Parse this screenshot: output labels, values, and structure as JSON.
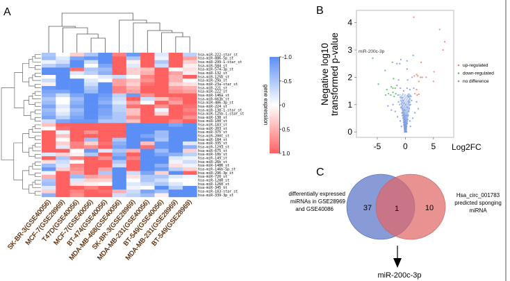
{
  "panels": {
    "a": "A",
    "b": "B",
    "c": "C"
  },
  "colors": {
    "low": "#5b8ff5",
    "mid": "#ffffff",
    "high": "#ff6161",
    "up": "#f08a70",
    "down": "#5fbf5f",
    "none": "#7f9fe0",
    "venn_left": "#5a74c8",
    "venn_right": "#e06868"
  },
  "chart_data": [
    {
      "type": "heatmap",
      "columns": [
        "SK-BR-3(GSE40056)",
        "MCF-7(GSE28969)",
        "T47D(GSE40056)",
        "MCF-7(GSE40056)",
        "BT-474(GSE40056)",
        "MDA-MB-468(GSE40056)",
        "SK-BR-3(GSE28969)",
        "MDA-MB-231(GSE40056)",
        "BT-549(GSE40056)",
        "MDA-MB-231(GSE28969)",
        "BT-549(GSE28969)"
      ],
      "rows": [
        "hsa-miR-222-star_st",
        "hsa-miR-886-5p_st",
        "hsa-miR-299-1-star_st",
        "hsa-miR-584_st",
        "hsa-miR-574-3p_st",
        "hsa-miR-132_st",
        "hsa-miR-125b_st",
        "hsa-miR-29a_st",
        "hsa-miR-23a-star_st",
        "hsa-miR-221_st",
        "hsa-miR-222_st",
        "hsa-miR-146a_st",
        "hsa-miR-663b_st",
        "hsa-miR-486-3p_st",
        "hsa-miR-224_st",
        "hsa-miR-130-1-star_st",
        "hsa-miR-125b-1-star_st",
        "hsa-miR-138_st",
        "hsa-miR-100_st",
        "hsa-miR-183_st",
        "hsa-miR-203_st",
        "hsa-miR-375_st",
        "hsa-miR-200c_st",
        "hsa-miR-184_st",
        "hsa-miR-335_st",
        "hsa-miR-1293_st",
        "hsa-miR-675_st",
        "hsa-miR-10b_st",
        "hsa-miR-149_st",
        "hsa-miR-26b_st",
        "hsa-miR-1486_st",
        "hsa-miR-146b-5p_st",
        "hsa-miR-296-3p_st",
        "hsa-miR-720_st",
        "hsa-miR-1280_st",
        "hsa-miR-1260_st",
        "hsa-miR-345_st",
        "hsa-miR-183-star_st",
        "hsa-miR-339-3p_st"
      ],
      "values": [
        [
          -0.5,
          0.0,
          0.3,
          -0.5,
          -1,
          0.8,
          -0.9,
          1,
          -0.2,
          1,
          -0.4
        ],
        [
          -0.6,
          -0.2,
          -0.8,
          -0.9,
          -1,
          1,
          -0.5,
          1,
          -0.1,
          1,
          0.6
        ],
        [
          -0.1,
          -0.3,
          -1,
          -0.3,
          -1,
          1,
          0.1,
          1,
          -0.5,
          1,
          0.3
        ],
        [
          -0.4,
          -0.6,
          -1,
          0,
          -0.8,
          1,
          -0.2,
          1,
          -0.3,
          1,
          0.1
        ],
        [
          -1,
          -1,
          0.9,
          -0.5,
          -0.6,
          1,
          0.3,
          0.4,
          1,
          0,
          0.2
        ],
        [
          -1,
          -1,
          -0.2,
          -0.4,
          -0.7,
          1,
          0.3,
          0.5,
          1,
          0.6,
          0.1
        ],
        [
          0,
          -1,
          0,
          0,
          -0.2,
          -0.3,
          0,
          0.8,
          1,
          0.5,
          1
        ],
        [
          -0.3,
          -1,
          -1,
          -0.2,
          0,
          0.6,
          0.4,
          0.7,
          1,
          0.5,
          0
        ],
        [
          0.1,
          -1,
          -1,
          -0.3,
          -1,
          0.6,
          0.3,
          0.9,
          1,
          0.3,
          0.2
        ],
        [
          -0.9,
          -1,
          -1,
          -0.5,
          -1,
          0.8,
          0.5,
          1,
          1,
          0.6,
          0.5
        ],
        [
          -0.8,
          -0.8,
          -1,
          -0.6,
          -1,
          0.8,
          0.6,
          1,
          1,
          0.7,
          0.6
        ],
        [
          -0.7,
          -0.3,
          -0.8,
          -1,
          -0.9,
          -0.4,
          -0.9,
          0.7,
          1,
          1,
          1
        ],
        [
          -0.5,
          0,
          -0.6,
          -1,
          -0.8,
          -0.3,
          1,
          -0.3,
          0.4,
          0.8,
          1
        ],
        [
          -0.6,
          0,
          -0.7,
          -1,
          -0.7,
          -0.2,
          0.6,
          0,
          1,
          0.6,
          1
        ],
        [
          -0.8,
          -0.2,
          -0.8,
          -1,
          -0.9,
          -0.4,
          0.9,
          1,
          0.7,
          1,
          0.9
        ],
        [
          -0.6,
          -0.1,
          -0.6,
          -1,
          -0.8,
          -0.4,
          0.4,
          1,
          -0.1,
          1,
          0.8
        ],
        [
          -0.7,
          -0.2,
          -0.7,
          -1,
          -0.8,
          -0.5,
          0.4,
          1,
          0.3,
          1,
          0.9
        ],
        [
          -0.8,
          -0.4,
          -0.8,
          -1,
          -0.7,
          -0.5,
          0.7,
          1,
          1,
          1,
          0.7
        ],
        [
          -0.3,
          -0.8,
          -0.9,
          -0.9,
          -0.5,
          -0.5,
          0.4,
          1,
          1,
          0.8,
          1
        ],
        [
          0.4,
          1,
          1,
          1,
          1,
          1,
          -1,
          -1,
          -1,
          -0.8,
          -1
        ],
        [
          0,
          0.9,
          1,
          1,
          1,
          1,
          -1,
          -1,
          -1,
          -1,
          -1
        ],
        [
          1,
          -0.1,
          1,
          0.7,
          1,
          1,
          -1,
          -1,
          -0.6,
          -1,
          -1
        ],
        [
          1,
          0.4,
          1,
          1,
          1,
          1,
          -1,
          -0.8,
          -0.6,
          -1,
          -1
        ],
        [
          1,
          0,
          1,
          -0.6,
          1,
          -0.5,
          -1,
          -1,
          -0.5,
          -1,
          -1
        ],
        [
          1,
          0.3,
          0.8,
          0.3,
          0.9,
          -0.7,
          -1,
          0.4,
          -0.9,
          -1,
          -0.2
        ],
        [
          1,
          -0.2,
          0.8,
          0.7,
          1,
          -0.8,
          -1,
          0.9,
          -0.9,
          -1,
          -0.7
        ],
        [
          1,
          1,
          0,
          -0.9,
          -0.2,
          -0.5,
          0.5,
          -1,
          -0.6,
          -1,
          0.3
        ],
        [
          -0.2,
          0.3,
          0.1,
          -0.5,
          1,
          -0.7,
          1,
          -1,
          -0.8,
          -0.7,
          -0.4
        ],
        [
          1,
          -0.5,
          0.8,
          1,
          0.7,
          -0.9,
          0.8,
          -1,
          -1,
          -0.2,
          -0.1
        ],
        [
          0.2,
          -0.3,
          0,
          1,
          1,
          -0.5,
          1,
          -1,
          -1,
          -0.1,
          -0.3
        ],
        [
          -0.6,
          -0.2,
          0.8,
          1,
          1,
          -0.3,
          1,
          -1,
          -0.7,
          0.2,
          -0.1
        ],
        [
          -0.9,
          0.3,
          0.7,
          1,
          0.6,
          -1,
          1,
          -1,
          -0.9,
          -0.4,
          0.3
        ],
        [
          -0.1,
          1,
          0.6,
          1,
          -0.5,
          -1,
          -0.3,
          -0.8,
          0.3,
          -1,
          1
        ],
        [
          0.5,
          1,
          -0.6,
          0.6,
          0.5,
          -1,
          0.2,
          -0.5,
          -0.5,
          -0.2,
          -0.1
        ],
        [
          -0.5,
          1,
          -0.2,
          0.3,
          0.3,
          -1,
          0,
          -0.5,
          -0.3,
          0,
          0
        ],
        [
          -0.6,
          1,
          0.2,
          0.1,
          0,
          -1,
          -0.2,
          -0.3,
          -0.5,
          -0.2,
          0
        ],
        [
          -0.2,
          1,
          1,
          0.8,
          1,
          -1,
          -0.1,
          0,
          -1,
          -0.4,
          -1
        ],
        [
          0.3,
          1,
          0.8,
          1,
          0.9,
          0.5,
          -0.3,
          -0.8,
          -0.6,
          -1,
          -1
        ],
        [
          -0.7,
          1,
          0.7,
          1,
          1,
          -0.3,
          -0.4,
          -0.6,
          0.1,
          -1,
          -1
        ]
      ],
      "colorbar": {
        "label": "gene expression",
        "ticks": [
          "-1.0",
          "-0.5",
          "0",
          "0.5",
          "1.0"
        ],
        "range": [
          -1,
          1
        ]
      }
    },
    {
      "type": "scatter",
      "xlabel": "Log2FC",
      "ylabel_lines": [
        "Negative log10",
        "transformed p-value"
      ],
      "xticks": [
        "-5",
        "0",
        "5"
      ],
      "yticks": [
        "0",
        "1",
        "2",
        "3",
        "4"
      ],
      "xlim": [
        -8.7,
        8.6
      ],
      "ylim": [
        -0.2,
        4.45
      ],
      "annotation": "miR-200c-3p",
      "legend_position": "right",
      "series": [
        {
          "name": "up-regulated",
          "points": [
            [
              1.5,
              4.2
            ],
            [
              6.1,
              3.75
            ],
            [
              7,
              3.3
            ],
            [
              6.7,
              3.0
            ],
            [
              2.8,
              2.55
            ],
            [
              5.1,
              2.2
            ],
            [
              1.6,
              2.05
            ],
            [
              2.0,
              2.1
            ],
            [
              2.2,
              2.05
            ],
            [
              2.7,
              2.0
            ],
            [
              3.0,
              2.0
            ],
            [
              3.7,
              2.0
            ],
            [
              5.0,
              1.85
            ],
            [
              2.4,
              1.85
            ],
            [
              2.0,
              1.55
            ],
            [
              1.7,
              1.4
            ],
            [
              2.1,
              1.35
            ],
            [
              2.4,
              1.38
            ]
          ]
        },
        {
          "name": "down-regulated",
          "points": [
            [
              -5.8,
              2.7
            ],
            [
              -2.3,
              2.55
            ],
            [
              -3.6,
              2.25
            ],
            [
              -2.1,
              1.95
            ],
            [
              -4.8,
              1.75
            ],
            [
              -2.5,
              1.65
            ],
            [
              -2.2,
              1.6
            ],
            [
              -1.8,
              1.6
            ],
            [
              -3.3,
              1.55
            ],
            [
              -2.2,
              1.45
            ],
            [
              -1.7,
              1.4
            ],
            [
              -3.5,
              1.35
            ],
            [
              -2.6,
              1.35
            ],
            [
              -2.0,
              1.3
            ],
            [
              -3.0,
              1.4
            ]
          ]
        },
        {
          "name": "no difference",
          "points": [
            [
              0,
              0.05
            ],
            [
              0.1,
              0.1
            ],
            [
              -0.1,
              0.15
            ],
            [
              0.2,
              0.2
            ],
            [
              -0.2,
              0.25
            ],
            [
              0.3,
              0.3
            ],
            [
              -0.3,
              0.35
            ],
            [
              0.4,
              0.45
            ],
            [
              -0.4,
              0.5
            ],
            [
              0.5,
              0.6
            ],
            [
              -0.5,
              0.6
            ],
            [
              0.6,
              0.75
            ],
            [
              -0.6,
              0.7
            ],
            [
              0.7,
              0.85
            ],
            [
              -0.8,
              0.9
            ],
            [
              0.9,
              1.0
            ],
            [
              -1.0,
              1.0
            ],
            [
              1.1,
              1.15
            ],
            [
              -1.2,
              1.1
            ],
            [
              0.5,
              1.3
            ],
            [
              -0.6,
              1.25
            ],
            [
              0.3,
              1.6
            ],
            [
              -0.3,
              1.5
            ],
            [
              0.4,
              1.9
            ],
            [
              0.3,
              2.3
            ],
            [
              0.3,
              2.6
            ],
            [
              -0.8,
              2.65
            ],
            [
              -1.0,
              2.5
            ],
            [
              1.4,
              2.8
            ],
            [
              -1.5,
              2.5
            ],
            [
              1.2,
              2.0
            ],
            [
              -1.2,
              1.9
            ],
            [
              -1.5,
              1.7
            ],
            [
              1.5,
              1.6
            ],
            [
              -3.1,
              0.95
            ],
            [
              -2.2,
              1.0
            ],
            [
              2.3,
              0.85
            ],
            [
              -1.8,
              0.75
            ],
            [
              1.7,
              0.7
            ],
            [
              0.8,
              0.4
            ],
            [
              -0.9,
              0.4
            ],
            [
              0.15,
              0.6
            ],
            [
              -0.15,
              0.8
            ],
            [
              0.05,
              1.0
            ],
            [
              0.6,
              1.1
            ],
            [
              -0.4,
              1.15
            ],
            [
              1.0,
              1.3
            ],
            [
              -1.3,
              1.35
            ],
            [
              0.9,
              0.2
            ],
            [
              -0.7,
              0.2
            ],
            [
              1.3,
              0.5
            ],
            [
              -1.4,
              0.55
            ],
            [
              0.2,
              0.0
            ],
            [
              -0.05,
              0.35
            ],
            [
              0.35,
              0.9
            ],
            [
              -0.25,
              1.05
            ],
            [
              2.0,
              1.1
            ],
            [
              -2.5,
              0.8
            ],
            [
              0.8,
              1.55
            ],
            [
              -0.9,
              1.6
            ]
          ]
        }
      ]
    },
    {
      "type": "venn",
      "sets": [
        {
          "label_lines": [
            "differentially expressed",
            "miRNAs in GSE28969",
            "and GSE40086"
          ],
          "only": "37"
        },
        {
          "label_lines": [
            "Hsa_circ_001783",
            "predicted sponging",
            "miRNA"
          ],
          "only": "10"
        }
      ],
      "intersection": "1",
      "result": "miR-200c-3p"
    }
  ]
}
